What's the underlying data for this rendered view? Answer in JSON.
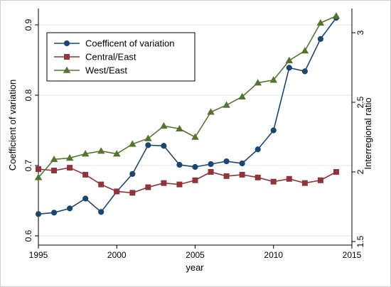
{
  "chart_data": {
    "type": "line",
    "title": "",
    "xlabel": "year",
    "ylabel": "Coefficient of variation",
    "y2label": "Interregional ratio",
    "x": [
      1995,
      1996,
      1997,
      1998,
      1999,
      2000,
      2001,
      2002,
      2003,
      2004,
      2005,
      2006,
      2007,
      2008,
      2009,
      2010,
      2011,
      2012,
      2013,
      2014
    ],
    "xlim": [
      1995,
      2015
    ],
    "ylim": [
      0.6,
      0.9
    ],
    "y2lim": [
      1.5,
      3.0
    ],
    "xticks": [
      "1995",
      "2000",
      "2005",
      "2010",
      "2015"
    ],
    "yticks": [
      "0.6",
      "0.7",
      "0.8",
      "0.9"
    ],
    "y2ticks": [
      "1.5",
      "2",
      "2.5",
      "3"
    ],
    "grid": "horizontal",
    "legend_position": "top-left",
    "series": [
      {
        "name": "Coefficent of variation",
        "axis": "left",
        "color": "#1a476f",
        "marker": "circle",
        "values": [
          0.631,
          0.633,
          0.639,
          0.653,
          0.634,
          0.663,
          0.688,
          0.729,
          0.728,
          0.701,
          0.698,
          0.702,
          0.706,
          0.703,
          0.723,
          0.75,
          0.839,
          0.834,
          0.88,
          0.91
        ]
      },
      {
        "name": "Central/East",
        "axis": "right",
        "color": "#90353b",
        "marker": "square",
        "values": [
          2.02,
          2.01,
          2.03,
          1.98,
          1.91,
          1.86,
          1.85,
          1.89,
          1.92,
          1.91,
          1.94,
          2.0,
          1.97,
          1.98,
          1.96,
          1.93,
          1.95,
          1.92,
          1.94,
          2.0
        ]
      },
      {
        "name": "West/East",
        "axis": "right",
        "color": "#55752f",
        "marker": "triangle",
        "values": [
          1.96,
          2.09,
          2.1,
          2.13,
          2.15,
          2.13,
          2.2,
          2.24,
          2.33,
          2.31,
          2.25,
          2.43,
          2.48,
          2.54,
          2.64,
          2.66,
          2.8,
          2.87,
          3.07,
          3.12
        ]
      }
    ]
  }
}
